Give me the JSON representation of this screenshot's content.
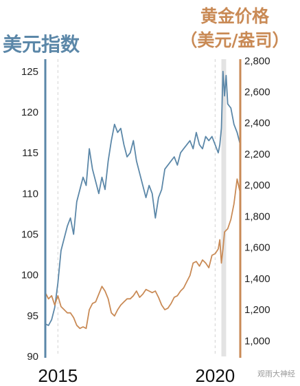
{
  "chart_data": {
    "type": "line",
    "title_left": "美元指数",
    "title_right_line1": "黄金价格",
    "title_right_line2": "（美元/盎司）",
    "x_ticks": [
      {
        "label": "2015",
        "year": 2015.0
      },
      {
        "label": "2020",
        "year": 2020.0
      }
    ],
    "xlim": [
      2014.6,
      2020.8
    ],
    "y_left": {
      "ticks": [
        "125",
        "120",
        "115",
        "110",
        "105",
        "100",
        "95",
        "90"
      ],
      "ylim": [
        90,
        126.5
      ]
    },
    "y_right": {
      "ticks": [
        "2,800",
        "2,600",
        "2,400",
        "2,200",
        "2,000",
        "1,800",
        "1,600",
        "1,400",
        "1,200",
        "1,000"
      ],
      "ylim": [
        900,
        2810
      ]
    },
    "shaded_region": [
      2020.2,
      2020.35
    ],
    "grid": true,
    "series": [
      {
        "name": "美元指数",
        "axis": "left",
        "color": "#5b87a8",
        "x": [
          2014.6,
          2014.7,
          2014.8,
          2014.9,
          2015.0,
          2015.1,
          2015.2,
          2015.3,
          2015.4,
          2015.5,
          2015.6,
          2015.7,
          2015.8,
          2015.9,
          2016.0,
          2016.1,
          2016.2,
          2016.3,
          2016.4,
          2016.5,
          2016.6,
          2016.7,
          2016.8,
          2016.9,
          2017.0,
          2017.1,
          2017.2,
          2017.3,
          2017.4,
          2017.5,
          2017.6,
          2017.7,
          2017.8,
          2017.9,
          2018.0,
          2018.1,
          2018.2,
          2018.3,
          2018.4,
          2018.5,
          2018.6,
          2018.7,
          2018.8,
          2018.9,
          2019.0,
          2019.1,
          2019.2,
          2019.3,
          2019.4,
          2019.5,
          2019.6,
          2019.7,
          2019.8,
          2019.9,
          2020.0,
          2020.1,
          2020.15,
          2020.2,
          2020.25,
          2020.3,
          2020.35,
          2020.4,
          2020.5,
          2020.6,
          2020.7,
          2020.8
        ],
        "y": [
          94.0,
          93.8,
          94.5,
          96.0,
          99.0,
          103.0,
          104.5,
          106.0,
          107.0,
          105.0,
          109.0,
          110.5,
          112.0,
          111.0,
          115.5,
          113.0,
          111.5,
          110.0,
          112.0,
          110.5,
          114.0,
          116.5,
          118.5,
          117.5,
          118.0,
          116.0,
          114.5,
          115.0,
          116.5,
          114.0,
          112.5,
          111.0,
          109.5,
          111.0,
          110.0,
          107.0,
          109.5,
          110.5,
          113.0,
          113.5,
          114.0,
          114.5,
          113.5,
          115.0,
          115.5,
          116.0,
          116.5,
          115.5,
          117.5,
          116.0,
          115.5,
          117.0,
          116.5,
          117.0,
          116.0,
          115.0,
          116.0,
          118.0,
          125.0,
          122.0,
          124.5,
          121.0,
          120.5,
          118.5,
          117.5,
          116.0
        ]
      },
      {
        "name": "黄金价格",
        "axis": "right",
        "color": "#c98a55",
        "x": [
          2014.6,
          2014.7,
          2014.8,
          2014.9,
          2015.0,
          2015.1,
          2015.2,
          2015.3,
          2015.4,
          2015.5,
          2015.6,
          2015.7,
          2015.8,
          2015.9,
          2016.0,
          2016.1,
          2016.2,
          2016.3,
          2016.4,
          2016.5,
          2016.6,
          2016.7,
          2016.8,
          2016.9,
          2017.0,
          2017.1,
          2017.2,
          2017.3,
          2017.4,
          2017.5,
          2017.6,
          2017.7,
          2017.8,
          2017.9,
          2018.0,
          2018.1,
          2018.2,
          2018.3,
          2018.4,
          2018.5,
          2018.6,
          2018.7,
          2018.8,
          2018.9,
          2019.0,
          2019.1,
          2019.2,
          2019.3,
          2019.4,
          2019.5,
          2019.6,
          2019.7,
          2019.8,
          2019.9,
          2020.0,
          2020.1,
          2020.15,
          2020.2,
          2020.25,
          2020.3,
          2020.35,
          2020.4,
          2020.5,
          2020.6,
          2020.7,
          2020.8
        ],
        "y": [
          1310.0,
          1270.0,
          1290.0,
          1230.0,
          1290.0,
          1220.0,
          1200.0,
          1180.0,
          1180.0,
          1150.0,
          1100.0,
          1080.0,
          1090.0,
          1080.0,
          1200.0,
          1240.0,
          1250.0,
          1300.0,
          1350.0,
          1320.0,
          1270.0,
          1180.0,
          1160.0,
          1200.0,
          1230.0,
          1250.0,
          1270.0,
          1270.0,
          1290.0,
          1320.0,
          1280.0,
          1300.0,
          1330.0,
          1320.0,
          1310.0,
          1320.0,
          1280.0,
          1230.0,
          1200.0,
          1210.0,
          1240.0,
          1280.0,
          1290.0,
          1320.0,
          1340.0,
          1380.0,
          1420.0,
          1500.0,
          1510.0,
          1480.0,
          1520.0,
          1500.0,
          1470.0,
          1550.0,
          1560.0,
          1590.0,
          1650.0,
          1500.0,
          1590.0,
          1700.0,
          1710.0,
          1720.0,
          1780.0,
          1880.0,
          2040.0,
          1950.0
        ]
      }
    ]
  },
  "watermark": "观雨大神经",
  "colors": {
    "left_axis": "#5b87a8",
    "right_axis": "#c98a55",
    "shade": "#e3e3e3"
  }
}
